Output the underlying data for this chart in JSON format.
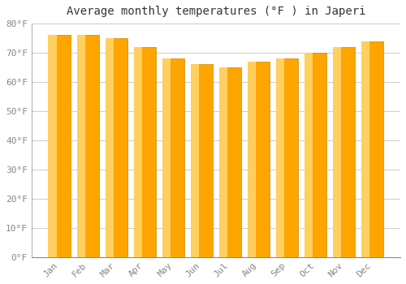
{
  "title": "Average monthly temperatures (°F ) in Japeri",
  "months": [
    "Jan",
    "Feb",
    "Mar",
    "Apr",
    "May",
    "Jun",
    "Jul",
    "Aug",
    "Sep",
    "Oct",
    "Nov",
    "Dec"
  ],
  "values": [
    76,
    76,
    75,
    72,
    68,
    66,
    65,
    67,
    68,
    70,
    72,
    74
  ],
  "bar_color_main": "#FFA500",
  "bar_color_light": "#FFD060",
  "bar_color_dark": "#E8900A",
  "background_color": "#FFFFFF",
  "grid_color": "#CCCCCC",
  "ylim": [
    0,
    80
  ],
  "yticks": [
    0,
    10,
    20,
    30,
    40,
    50,
    60,
    70,
    80
  ],
  "title_fontsize": 10,
  "tick_fontsize": 8,
  "figsize": [
    5.0,
    3.5
  ],
  "dpi": 100
}
